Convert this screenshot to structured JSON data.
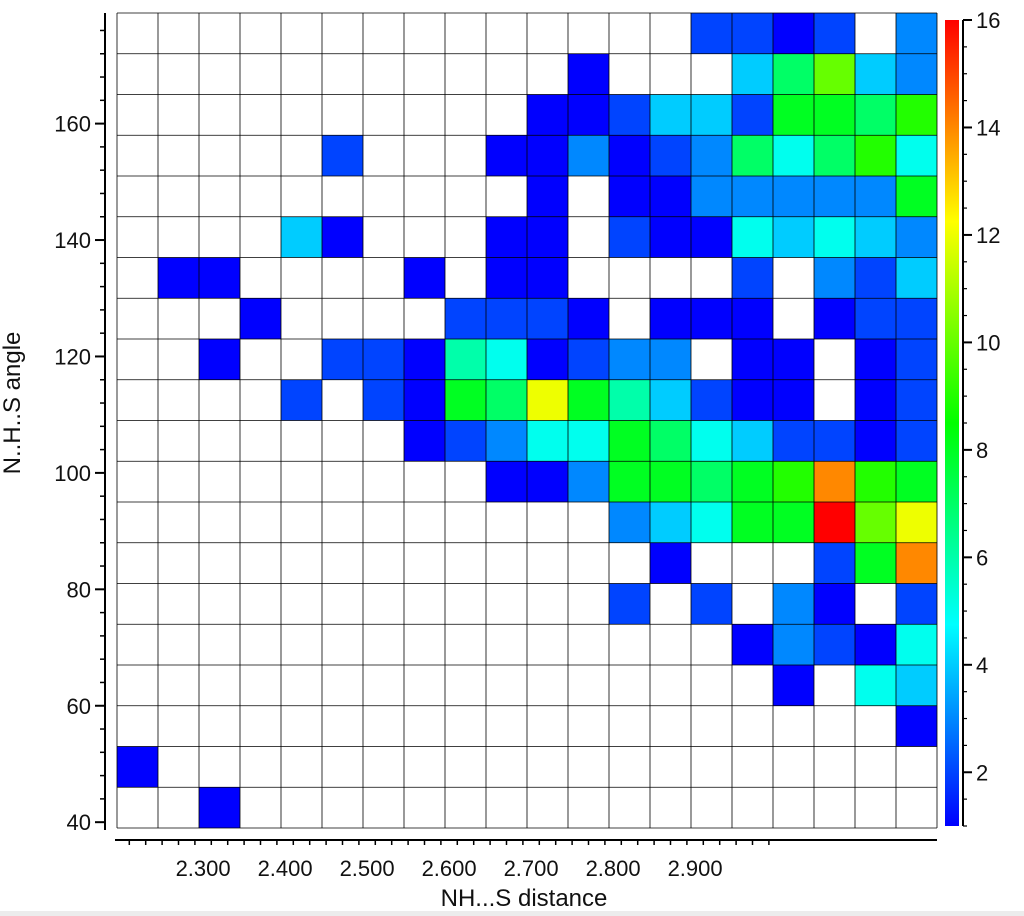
{
  "chart_data": {
    "type": "heatmap",
    "xlabel": "NH...S distance",
    "ylabel": "N..H..S angle",
    "x_ticks": [
      "2.300",
      "2.400",
      "2.500",
      "2.600",
      "2.700",
      "2.800",
      "2.900"
    ],
    "y_ticks": [
      "40",
      "60",
      "80",
      "100",
      "120",
      "140",
      "160"
    ],
    "colorbar_ticks": [
      "2",
      "4",
      "6",
      "8",
      "10",
      "12",
      "16"
    ],
    "colorbar_extra_tick": "14",
    "colorbar_range": [
      1,
      16
    ],
    "grid": true,
    "x_bins": {
      "first_center": 2.22,
      "step": 0.05,
      "count": 20
    },
    "y_bins": {
      "first_center": 175.5,
      "step": -7.0,
      "count": 20
    },
    "grid_counts": [
      [
        0,
        0,
        0,
        0,
        0,
        0,
        0,
        0,
        0,
        0,
        0,
        0,
        0,
        0,
        2,
        2,
        1,
        2,
        0,
        3
      ],
      [
        0,
        0,
        0,
        0,
        0,
        0,
        0,
        0,
        0,
        0,
        0,
        1,
        0,
        0,
        0,
        4,
        7,
        10,
        4,
        3
      ],
      [
        0,
        0,
        0,
        0,
        0,
        0,
        0,
        0,
        0,
        0,
        1,
        1,
        2,
        4,
        4,
        2,
        8,
        8,
        7,
        9
      ],
      [
        0,
        0,
        0,
        0,
        0,
        2,
        0,
        0,
        0,
        1,
        1,
        3,
        1,
        2,
        3,
        7,
        5,
        7,
        9,
        5
      ],
      [
        0,
        0,
        0,
        0,
        0,
        0,
        0,
        0,
        0,
        0,
        1,
        0,
        1,
        1,
        3,
        3,
        3,
        3,
        3,
        8
      ],
      [
        0,
        0,
        0,
        0,
        4,
        1,
        0,
        0,
        0,
        1,
        1,
        0,
        2,
        1,
        1,
        5,
        4,
        5,
        4,
        3
      ],
      [
        0,
        1,
        1,
        0,
        0,
        0,
        0,
        1,
        0,
        1,
        1,
        0,
        0,
        0,
        0,
        2,
        0,
        3,
        2,
        4
      ],
      [
        0,
        0,
        0,
        1,
        0,
        0,
        0,
        0,
        2,
        2,
        2,
        1,
        0,
        1,
        1,
        1,
        0,
        1,
        2,
        2
      ],
      [
        0,
        0,
        1,
        0,
        0,
        2,
        2,
        1,
        6,
        5,
        1,
        2,
        3,
        3,
        0,
        1,
        1,
        0,
        1,
        2
      ],
      [
        0,
        0,
        0,
        0,
        2,
        0,
        2,
        1,
        8,
        7,
        12,
        8,
        6,
        4,
        2,
        1,
        1,
        0,
        1,
        2
      ],
      [
        0,
        0,
        0,
        0,
        0,
        0,
        0,
        1,
        2,
        3,
        5,
        5,
        8,
        7,
        5,
        4,
        2,
        2,
        1,
        2
      ],
      [
        0,
        0,
        0,
        0,
        0,
        0,
        0,
        0,
        0,
        1,
        1,
        3,
        8,
        8,
        7,
        8,
        9,
        14,
        9,
        8
      ],
      [
        0,
        0,
        0,
        0,
        0,
        0,
        0,
        0,
        0,
        0,
        0,
        0,
        3,
        4,
        5,
        8,
        8,
        16,
        10,
        12
      ],
      [
        0,
        0,
        0,
        0,
        0,
        0,
        0,
        0,
        0,
        0,
        0,
        0,
        0,
        1,
        0,
        0,
        0,
        2,
        8,
        14
      ],
      [
        0,
        0,
        0,
        0,
        0,
        0,
        0,
        0,
        0,
        0,
        0,
        0,
        2,
        0,
        2,
        0,
        3,
        1,
        0,
        2
      ],
      [
        0,
        0,
        0,
        0,
        0,
        0,
        0,
        0,
        0,
        0,
        0,
        0,
        0,
        0,
        0,
        1,
        3,
        2,
        1,
        5
      ],
      [
        0,
        0,
        0,
        0,
        0,
        0,
        0,
        0,
        0,
        0,
        0,
        0,
        0,
        0,
        0,
        0,
        1,
        0,
        5,
        4
      ],
      [
        0,
        0,
        0,
        0,
        0,
        0,
        0,
        0,
        0,
        0,
        0,
        0,
        0,
        0,
        0,
        0,
        0,
        0,
        0,
        1
      ],
      [
        1,
        0,
        0,
        0,
        0,
        0,
        0,
        0,
        0,
        0,
        0,
        0,
        0,
        0,
        0,
        0,
        0,
        0,
        0,
        0
      ],
      [
        0,
        0,
        1,
        0,
        0,
        0,
        0,
        0,
        0,
        0,
        0,
        0,
        0,
        0,
        0,
        0,
        0,
        0,
        0,
        0
      ]
    ],
    "colormap": [
      "#0000ff",
      "#00ffff",
      "#00ff00",
      "#ffff00",
      "#ff0000"
    ]
  }
}
